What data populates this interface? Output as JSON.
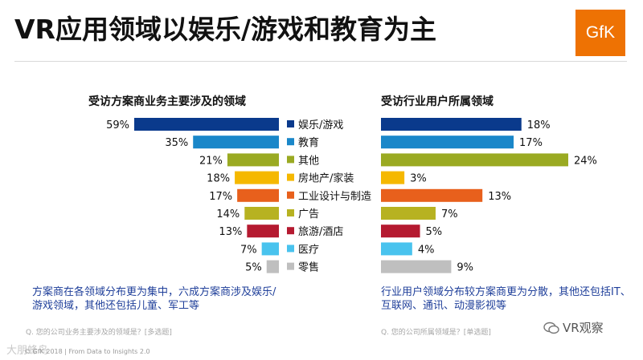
{
  "title": "VR应用领域以娱乐/游戏和教育为主",
  "logo": "GfK",
  "chart_data": [
    {
      "type": "bar",
      "orientation": "horizontal",
      "title": "受访方案商业务主要涉及的领域",
      "categories": [
        "娱乐/游戏",
        "教育",
        "其他",
        "房地产/家装",
        "工业设计与制造",
        "广告",
        "旅游/酒店",
        "医疗",
        "零售"
      ],
      "values": [
        59,
        35,
        21,
        18,
        17,
        14,
        13,
        7,
        5
      ],
      "value_labels": [
        "59%",
        "35%",
        "21%",
        "18%",
        "17%",
        "14%",
        "13%",
        "7%",
        "5%"
      ],
      "unit": "%",
      "xlim": [
        0,
        60
      ]
    },
    {
      "type": "bar",
      "orientation": "horizontal",
      "title": "受访行业用户所属领域",
      "categories": [
        "娱乐/游戏",
        "教育",
        "其他",
        "房地产/家装",
        "工业设计与制造",
        "广告",
        "旅游/酒店",
        "医疗",
        "零售"
      ],
      "values": [
        18,
        17,
        24,
        3,
        13,
        7,
        5,
        4,
        9
      ],
      "value_labels": [
        "18%",
        "17%",
        "24%",
        "3%",
        "13%",
        "7%",
        "5%",
        "4%",
        "9%"
      ],
      "unit": "%",
      "xlim": [
        0,
        25
      ]
    }
  ],
  "colors": [
    "#0a3a8c",
    "#1a87c9",
    "#9aaa22",
    "#f5b800",
    "#e8601c",
    "#b7b221",
    "#b51a30",
    "#49c3ee",
    "#bfbfbf"
  ],
  "notes": {
    "left": "方案商在各领域分布更为集中，六成方案商涉及娱乐/游戏领域，其他还包括儿童、军工等",
    "right": "行业用户领域分布较方案商更为分散，其他还包括IT、互联网、通讯、动漫影视等"
  },
  "sources": {
    "left": "Q. 您的公司业务主要涉及的领域是？[多选题]",
    "right": "Q. 您的公司所属领域是？[单选题]"
  },
  "footer": "© GfK 2018 | From Data to Insights 2.0",
  "wechat": "VR观察",
  "watermark": "大朋蜂鸟"
}
